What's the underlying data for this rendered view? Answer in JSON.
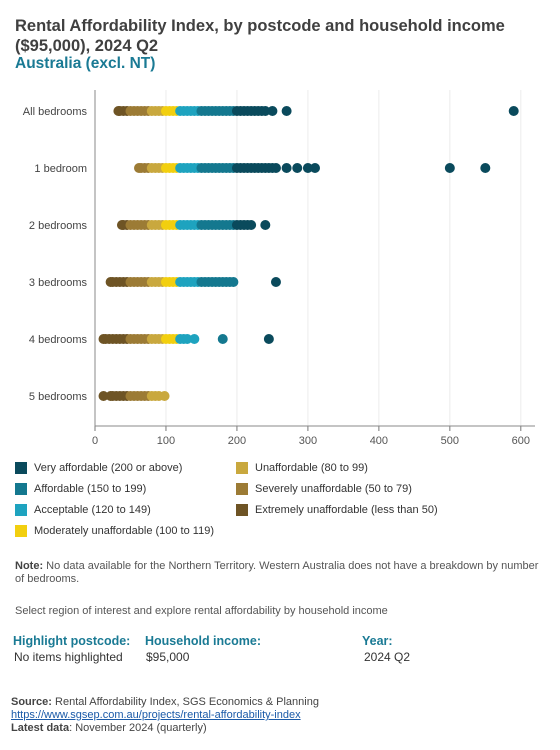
{
  "title": "Rental Affordability Index, by postcode and household income ($95,000), 2024 Q2",
  "subtitle": "Australia (excl. NT)",
  "chart_data": {
    "type": "scatter",
    "orientation": "horizontal-strip",
    "xlim": [
      0,
      620
    ],
    "xticks": [
      0,
      100,
      200,
      300,
      400,
      500,
      600
    ],
    "grid": true,
    "categories": [
      "All bedrooms",
      "1 bedroom",
      "2 bedrooms",
      "3 bedrooms",
      "4 bedrooms",
      "5 bedrooms"
    ],
    "points": [
      [
        33,
        35,
        40,
        45,
        50,
        55,
        60,
        65,
        70,
        75,
        80,
        85,
        90,
        95,
        100,
        105,
        110,
        115,
        120,
        125,
        130,
        135,
        140,
        145,
        150,
        155,
        160,
        165,
        170,
        175,
        180,
        185,
        190,
        195,
        200,
        205,
        210,
        215,
        220,
        225,
        230,
        235,
        240,
        250,
        270,
        590
      ],
      [
        62,
        65,
        70,
        75,
        80,
        85,
        90,
        95,
        100,
        105,
        110,
        115,
        120,
        125,
        130,
        135,
        140,
        145,
        150,
        155,
        160,
        165,
        170,
        175,
        180,
        185,
        190,
        195,
        200,
        205,
        210,
        215,
        220,
        225,
        230,
        235,
        240,
        245,
        250,
        255,
        270,
        285,
        300,
        310,
        500,
        550
      ],
      [
        38,
        40,
        45,
        50,
        55,
        60,
        65,
        70,
        75,
        80,
        85,
        90,
        95,
        100,
        105,
        110,
        115,
        120,
        125,
        130,
        135,
        140,
        145,
        150,
        155,
        160,
        165,
        170,
        175,
        180,
        185,
        190,
        195,
        200,
        205,
        210,
        215,
        220,
        240
      ],
      [
        22,
        25,
        30,
        35,
        40,
        45,
        50,
        55,
        60,
        65,
        70,
        75,
        80,
        85,
        90,
        95,
        100,
        105,
        110,
        115,
        120,
        125,
        130,
        135,
        140,
        145,
        150,
        155,
        160,
        165,
        170,
        175,
        180,
        185,
        190,
        195,
        255
      ],
      [
        12,
        15,
        20,
        25,
        30,
        35,
        40,
        45,
        50,
        55,
        60,
        65,
        70,
        75,
        80,
        85,
        90,
        95,
        100,
        105,
        110,
        115,
        120,
        125,
        130,
        140,
        180,
        245
      ],
      [
        12,
        22,
        25,
        30,
        35,
        40,
        45,
        50,
        55,
        60,
        65,
        70,
        75,
        80,
        85,
        90,
        98
      ]
    ]
  },
  "legend": [
    {
      "label": "Very affordable (200 or above)",
      "color": "#0a4a5c"
    },
    {
      "label": "Unaffordable (80 to 99)",
      "color": "#c9a83e"
    },
    {
      "label": "Affordable (150 to 199)",
      "color": "#14788f"
    },
    {
      "label": "Severely unaffordable (50 to 79)",
      "color": "#9c7b35"
    },
    {
      "label": "Acceptable (120 to 149)",
      "color": "#1ea3bf"
    },
    {
      "label": "Extremely unaffordable (less than 50)",
      "color": "#6e5425"
    },
    {
      "label": "Moderately unaffordable (100 to 119)",
      "color": "#f2cf0f"
    }
  ],
  "note": {
    "label": "Note:",
    "text": " No data available for the Northern Territory. Western Australia does not have a breakdown by number of bedrooms."
  },
  "select_text": "Select region of interest and explore rental affordability by household income",
  "controls": {
    "postcode": {
      "label": "Highlight postcode:",
      "value": "No items highlighted"
    },
    "income": {
      "label": "Household income:",
      "value": "$95,000"
    },
    "year": {
      "label": "Year:",
      "value": "2024 Q2"
    }
  },
  "source": {
    "label": "Source:",
    "text": " Rental Affordability Index, SGS Economics & Planning",
    "link": "https://www.sgsep.com.au/projects/rental-affordability-index",
    "latest_label": "Latest data",
    "latest_text": ": November 2024 (quarterly)"
  }
}
